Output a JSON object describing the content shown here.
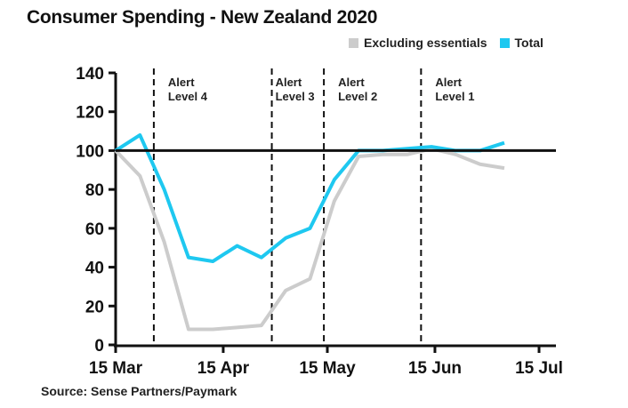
{
  "chart_data": {
    "type": "line",
    "title": "Consumer Spending - New Zealand 2020",
    "source": "Source: Sense Partners/Paymark",
    "xlabel": "",
    "ylabel": "",
    "x_unit": "days since 15 Mar",
    "xlim": [
      0,
      122
    ],
    "ylim": [
      0,
      140
    ],
    "yticks": [
      0,
      20,
      40,
      60,
      80,
      100,
      120,
      140
    ],
    "xticks": [
      {
        "day": 0,
        "label": "15 Mar"
      },
      {
        "day": 31,
        "label": "15 Apr"
      },
      {
        "day": 61,
        "label": "15 May"
      },
      {
        "day": 92,
        "label": "15 Jun"
      },
      {
        "day": 122,
        "label": "15 Jul"
      }
    ],
    "reference_line": 100,
    "x": [
      0,
      7,
      14,
      21,
      28,
      35,
      42,
      49,
      56,
      63,
      70,
      77,
      84,
      91,
      98,
      105,
      112
    ],
    "series": [
      {
        "name": "Excluding essentials",
        "color": "#cccccc",
        "values": [
          100,
          87,
          53,
          8,
          8,
          9,
          10,
          28,
          34,
          74,
          97,
          98,
          98,
          101,
          98,
          93,
          91
        ]
      },
      {
        "name": "Total",
        "color": "#1ec8f0",
        "values": [
          100,
          108,
          80,
          45,
          43,
          51,
          45,
          55,
          60,
          85,
          100,
          100,
          101,
          102,
          100,
          100,
          104
        ]
      }
    ],
    "alert_levels": [
      {
        "day": 11,
        "line1": "Alert",
        "line2": "Level 4"
      },
      {
        "day": 45,
        "line1": "Alert",
        "line2": "Level 3"
      },
      {
        "day": 60,
        "line1": "Alert",
        "line2": "Level 2"
      },
      {
        "day": 88,
        "line1": "Alert",
        "line2": "Level 1"
      }
    ],
    "legend_position": "top-right"
  }
}
